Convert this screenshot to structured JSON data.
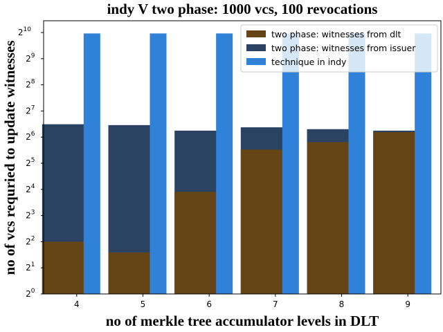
{
  "chart_data": {
    "type": "bar",
    "title": "indy V two phase: 1000 vcs, 100 revocations",
    "xlabel": "no of merkle tree accumulator levels in DLT",
    "ylabel": "no of vcs requried to update witnesses",
    "categories": [
      "4",
      "5",
      "6",
      "7",
      "8",
      "9"
    ],
    "y_scale": "log2",
    "y_ticks": [
      {
        "value": 1,
        "base": "2",
        "exp": "0"
      },
      {
        "value": 2,
        "base": "2",
        "exp": "1"
      },
      {
        "value": 4,
        "base": "2",
        "exp": "2"
      },
      {
        "value": 8,
        "base": "2",
        "exp": "3"
      },
      {
        "value": 16,
        "base": "2",
        "exp": "4"
      },
      {
        "value": 32,
        "base": "2",
        "exp": "5"
      },
      {
        "value": 64,
        "base": "2",
        "exp": "6"
      },
      {
        "value": 128,
        "base": "2",
        "exp": "7"
      },
      {
        "value": 256,
        "base": "2",
        "exp": "8"
      },
      {
        "value": 512,
        "base": "2",
        "exp": "9"
      },
      {
        "value": 1024,
        "base": "2",
        "exp": "10"
      }
    ],
    "ylim": [
      1,
      1400
    ],
    "legend_position": "top-right",
    "series": [
      {
        "name": "two phase: witnesses from dlt",
        "color": "#654515",
        "values": [
          4,
          3,
          15,
          46,
          56,
          73
        ]
      },
      {
        "name": "two phase: witnesses from issuer",
        "color": "#2c4263",
        "values": [
          90,
          88,
          76,
          83,
          79,
          76
        ]
      },
      {
        "name": "technique in indy",
        "color": "#3082d8",
        "values": [
          1000,
          1000,
          1000,
          1000,
          1000,
          1000
        ]
      }
    ]
  }
}
